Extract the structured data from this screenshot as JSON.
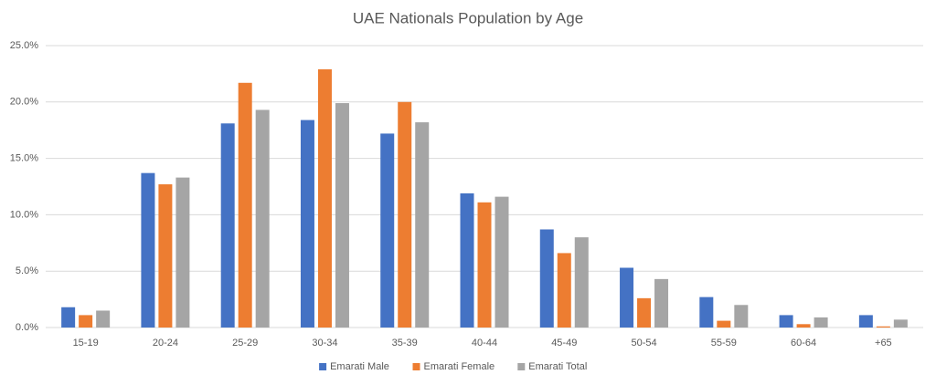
{
  "chart_data": {
    "type": "bar",
    "title": "UAE Nationals Population by Age",
    "categories": [
      "15-19",
      "20-24",
      "25-29",
      "30-34",
      "35-39",
      "40-44",
      "45-49",
      "50-54",
      "55-59",
      "60-64",
      "+65"
    ],
    "series": [
      {
        "name": "Emarati Male",
        "color": "#4472c4",
        "values": [
          1.8,
          13.7,
          18.1,
          18.4,
          17.2,
          11.9,
          8.7,
          5.3,
          2.7,
          1.1,
          1.1
        ]
      },
      {
        "name": "Emarati Female",
        "color": "#ed7d31",
        "values": [
          1.1,
          12.7,
          21.7,
          22.9,
          20.0,
          11.1,
          6.6,
          2.6,
          0.6,
          0.3,
          0.1
        ]
      },
      {
        "name": "Emarati Total",
        "color": "#a5a5a5",
        "values": [
          1.5,
          13.3,
          19.3,
          19.9,
          18.2,
          11.6,
          8.0,
          4.3,
          2.0,
          0.9,
          0.7
        ]
      }
    ],
    "ylim": [
      0,
      25
    ],
    "yticks": [
      {
        "value": 0,
        "label": "0.0%"
      },
      {
        "value": 5,
        "label": "5.0%"
      },
      {
        "value": 10,
        "label": "10.0%"
      },
      {
        "value": 15,
        "label": "15.0%"
      },
      {
        "value": 20,
        "label": "20.0%"
      },
      {
        "value": 25,
        "label": "25.0%"
      }
    ],
    "grid": true,
    "legend": "bottom"
  }
}
